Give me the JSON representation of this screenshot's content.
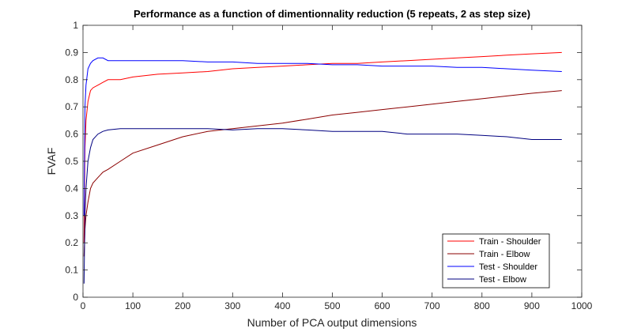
{
  "chart_data": {
    "type": "line",
    "title": "Performance as a function of dimentionnality reduction (5 repeats, 2 as step size)",
    "xlabel": "Number of PCA output dimensions",
    "ylabel": "FVAF",
    "xlim": [
      0,
      1000
    ],
    "ylim": [
      0,
      1
    ],
    "xticks": [
      "0",
      "100",
      "200",
      "300",
      "400",
      "500",
      "600",
      "700",
      "800",
      "900",
      "1000"
    ],
    "yticks": [
      "0",
      "0.1",
      "0.2",
      "0.3",
      "0.4",
      "0.5",
      "0.6",
      "0.7",
      "0.8",
      "0.9",
      "1"
    ],
    "grid": false,
    "legend_position": "bottom-right",
    "x": [
      2,
      4,
      6,
      10,
      15,
      20,
      30,
      40,
      50,
      75,
      100,
      150,
      200,
      250,
      300,
      350,
      400,
      450,
      500,
      550,
      600,
      650,
      700,
      750,
      800,
      850,
      900,
      960
    ],
    "series": [
      {
        "name": "Train - Shoulder",
        "color": "#ff0000",
        "values": [
          0.2,
          0.55,
          0.65,
          0.72,
          0.76,
          0.77,
          0.78,
          0.79,
          0.8,
          0.8,
          0.81,
          0.82,
          0.825,
          0.83,
          0.84,
          0.845,
          0.85,
          0.855,
          0.86,
          0.86,
          0.865,
          0.87,
          0.875,
          0.88,
          0.885,
          0.89,
          0.895,
          0.9
        ]
      },
      {
        "name": "Train - Elbow",
        "color": "#8b0000",
        "values": [
          0.15,
          0.25,
          0.3,
          0.35,
          0.4,
          0.42,
          0.44,
          0.46,
          0.47,
          0.5,
          0.53,
          0.56,
          0.59,
          0.61,
          0.62,
          0.63,
          0.64,
          0.655,
          0.67,
          0.68,
          0.69,
          0.7,
          0.71,
          0.72,
          0.73,
          0.74,
          0.75,
          0.76
        ]
      },
      {
        "name": "Test - Shoulder",
        "color": "#0000ff",
        "values": [
          0.3,
          0.7,
          0.78,
          0.84,
          0.86,
          0.87,
          0.88,
          0.88,
          0.87,
          0.87,
          0.87,
          0.87,
          0.87,
          0.865,
          0.865,
          0.86,
          0.86,
          0.86,
          0.855,
          0.855,
          0.85,
          0.85,
          0.85,
          0.845,
          0.845,
          0.84,
          0.835,
          0.83
        ]
      },
      {
        "name": "Test - Elbow",
        "color": "#000080",
        "values": [
          0.05,
          0.3,
          0.4,
          0.5,
          0.55,
          0.58,
          0.6,
          0.61,
          0.615,
          0.62,
          0.62,
          0.62,
          0.62,
          0.62,
          0.615,
          0.62,
          0.62,
          0.615,
          0.61,
          0.61,
          0.61,
          0.6,
          0.6,
          0.6,
          0.595,
          0.59,
          0.58,
          0.58
        ]
      }
    ]
  }
}
